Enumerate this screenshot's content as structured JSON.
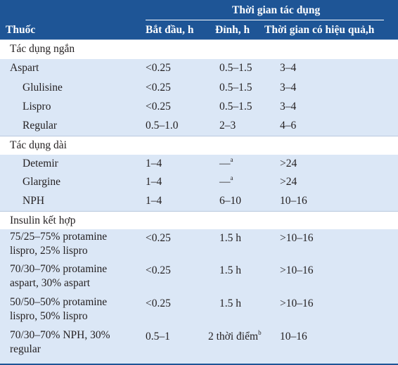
{
  "header": {
    "group_title": "Thời gian tác dụng",
    "col_drug": "Thuốc",
    "col_onset": "Bắt đầu, h",
    "col_peak": "Đỉnh, h",
    "col_duration": "Thời gian có hiệu quả,h"
  },
  "rows": [
    {
      "drug": "Tác dụng ngắn"
    },
    {
      "drug": "Aspart",
      "onset": "<0.25",
      "peak": "0.5–1.5",
      "duration": "3–4"
    },
    {
      "drug": "Glulisine",
      "onset": "<0.25",
      "peak": "0.5–1.5",
      "duration": "3–4"
    },
    {
      "drug": "Lispro",
      "onset": "<0.25",
      "peak": "0.5–1.5",
      "duration": "3–4"
    },
    {
      "drug": "Regular",
      "onset": "0.5–1.0",
      "peak": "2–3",
      "duration": "4–6"
    },
    {
      "drug": "Tác dụng dài"
    },
    {
      "drug": "Detemir",
      "onset": "1–4",
      "peak": "—",
      "peak_note": "a",
      "duration": ">24"
    },
    {
      "drug": "Glargine",
      "onset": "1–4",
      "peak": "—",
      "peak_note": "a",
      "duration": ">24"
    },
    {
      "drug": "NPH",
      "onset": "1–4",
      "peak": "6–10",
      "duration": "10–16"
    },
    {
      "drug": "Insulin kết hợp"
    },
    {
      "drug_line1": "75/25–75% protamine",
      "drug_line2": "lispro, 25% lispro",
      "onset": "<0.25",
      "peak": "1.5 h",
      "duration": ">10–16"
    },
    {
      "drug_line1": "70/30–70% protamine",
      "drug_line2": "aspart, 30% aspart",
      "onset": "<0.25",
      "peak": "1.5 h",
      "duration": ">10–16"
    },
    {
      "drug_line1": "50/50–50% protamine",
      "drug_line2": "lispro, 50% lispro",
      "onset": "<0.25",
      "peak": "1.5 h",
      "duration": ">10–16"
    },
    {
      "drug_line1": "70/30–70% NPH, 30%",
      "drug_line2": "regular",
      "onset": "0.5–1",
      "peak": "2 thời điểm",
      "peak_note": "b",
      "duration": "10–16"
    }
  ]
}
